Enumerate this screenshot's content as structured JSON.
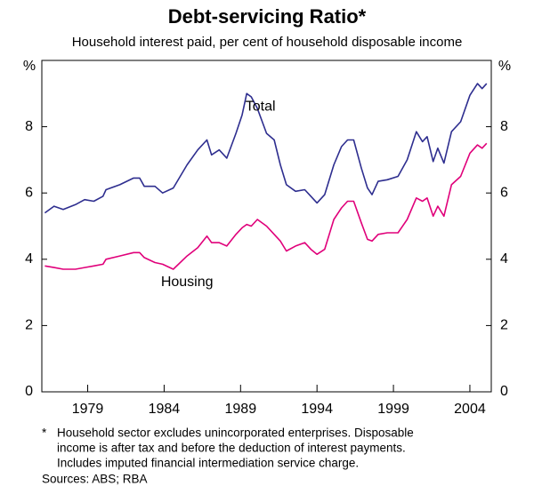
{
  "chart_data": {
    "type": "line",
    "title": "Debt-servicing Ratio*",
    "subtitle": "Household interest paid, per cent of household disposable income",
    "y_label": "%",
    "y2_label": "%",
    "xlim": [
      1976,
      2005.4
    ],
    "xticks": [
      1979,
      1984,
      1989,
      1994,
      1999,
      2004
    ],
    "ylim": [
      0,
      10
    ],
    "yticks": [
      0,
      2,
      4,
      6,
      8
    ],
    "y2lim": [
      0,
      10
    ],
    "y2ticks": [
      0,
      2,
      4,
      6,
      8
    ],
    "grid": false,
    "x": [
      1976.2,
      1976.8,
      1977.4,
      1978.2,
      1978.8,
      1979.4,
      1980,
      1980.2,
      1981.1,
      1982,
      1982.4,
      1982.7,
      1983.4,
      1983.9,
      1984.6,
      1985.5,
      1986.2,
      1986.8,
      1987.1,
      1987.6,
      1988.1,
      1988.7,
      1989.1,
      1989.4,
      1989.7,
      1990.1,
      1990.7,
      1991.2,
      1991.6,
      1992,
      1992.6,
      1993.2,
      1993.6,
      1994,
      1994.5,
      1995.1,
      1995.6,
      1996,
      1996.4,
      1996.9,
      1997.3,
      1997.6,
      1998,
      1998.6,
      1999.3,
      1999.9,
      2000.5,
      2000.9,
      2001.2,
      2001.6,
      2001.9,
      2002.3,
      2002.8,
      2003.4,
      2004,
      2004.5,
      2004.8,
      2005.1
    ],
    "series": [
      {
        "name": "Total",
        "color": "#2e2e8f",
        "label_pos": [
          1990.3,
          8.6
        ],
        "values": [
          5.4,
          5.6,
          5.5,
          5.65,
          5.8,
          5.75,
          5.9,
          6.1,
          6.25,
          6.45,
          6.45,
          6.2,
          6.2,
          6.0,
          6.15,
          6.85,
          7.3,
          7.6,
          7.15,
          7.3,
          7.05,
          7.8,
          8.35,
          9.0,
          8.9,
          8.55,
          7.8,
          7.6,
          6.85,
          6.25,
          6.05,
          6.1,
          5.9,
          5.7,
          5.95,
          6.85,
          7.4,
          7.6,
          7.6,
          6.75,
          6.15,
          5.95,
          6.35,
          6.4,
          6.5,
          7.0,
          7.85,
          7.55,
          7.7,
          6.95,
          7.35,
          6.9,
          7.85,
          8.15,
          8.95,
          9.3,
          9.15,
          9.3
        ]
      },
      {
        "name": "Housing",
        "color": "#e0007a",
        "label_pos": [
          1985.5,
          3.3
        ],
        "values": [
          3.8,
          3.75,
          3.7,
          3.7,
          3.75,
          3.8,
          3.85,
          4.0,
          4.1,
          4.2,
          4.2,
          4.05,
          3.9,
          3.85,
          3.7,
          4.1,
          4.35,
          4.7,
          4.5,
          4.5,
          4.4,
          4.75,
          4.95,
          5.05,
          5.0,
          5.2,
          5.0,
          4.75,
          4.55,
          4.25,
          4.4,
          4.5,
          4.3,
          4.15,
          4.3,
          5.2,
          5.55,
          5.75,
          5.75,
          5.1,
          4.6,
          4.55,
          4.75,
          4.8,
          4.8,
          5.2,
          5.85,
          5.75,
          5.85,
          5.3,
          5.6,
          5.3,
          6.25,
          6.5,
          7.2,
          7.45,
          7.35,
          7.5
        ]
      }
    ],
    "footnote_mark": "*",
    "footnote": [
      "Household sector excludes unincorporated enterprises. Disposable",
      "income is after tax and before the deduction of interest payments.",
      "Includes imputed financial intermediation service charge."
    ],
    "sources": "Sources: ABS; RBA"
  }
}
